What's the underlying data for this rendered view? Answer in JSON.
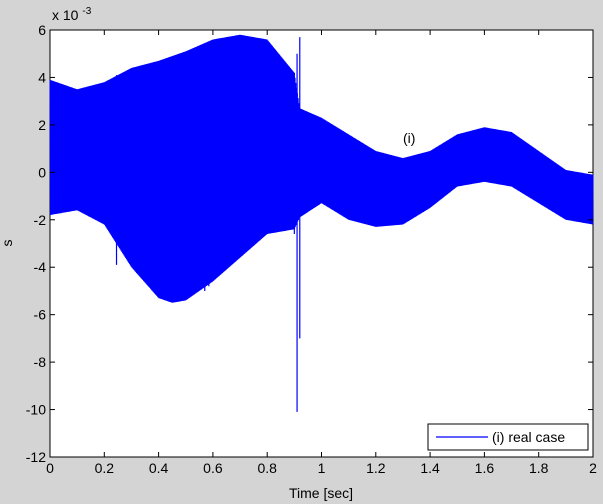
{
  "chart_data": {
    "type": "line",
    "title": "",
    "xlabel": "Time [sec]",
    "ylabel": "s",
    "xlim": [
      0,
      2
    ],
    "ylim": [
      -12,
      6
    ],
    "y_exponent_label": "x 10",
    "y_exponent_power": "-3",
    "grid": false,
    "x_ticks": [
      0,
      0.2,
      0.4,
      0.6,
      0.8,
      1,
      1.2,
      1.4,
      1.6,
      1.8,
      2
    ],
    "x_tick_labels": [
      "0",
      "0.2",
      "0.4",
      "0.6",
      "0.8",
      "1",
      "1.2",
      "1.4",
      "1.6",
      "1.8",
      "2"
    ],
    "y_ticks": [
      -12,
      -10,
      -8,
      -6,
      -4,
      -2,
      0,
      2,
      4,
      6
    ],
    "y_tick_labels": [
      "-12",
      "-10",
      "-8",
      "-6",
      "-4",
      "-2",
      "0",
      "2",
      "4",
      "6"
    ],
    "legend_position": "bottom-right",
    "annotation": {
      "text": "(i)",
      "x": 1.33,
      "y": 1.4
    },
    "series": [
      {
        "name": "(i) real case",
        "color": "#0000ff",
        "x": [
          0,
          0.1,
          0.2,
          0.3,
          0.4,
          0.45,
          0.5,
          0.6,
          0.7,
          0.8,
          0.9,
          0.92,
          1.0,
          1.1,
          1.2,
          1.3,
          1.4,
          1.5,
          1.6,
          1.7,
          1.8,
          1.9,
          2.0
        ],
        "upper": [
          3.9,
          3.5,
          3.8,
          4.4,
          4.7,
          4.9,
          5.1,
          5.6,
          5.8,
          5.6,
          4.2,
          2.7,
          2.3,
          1.6,
          0.9,
          0.6,
          0.9,
          1.6,
          1.9,
          1.7,
          0.9,
          0.1,
          -0.1
        ],
        "lower": [
          -1.8,
          -1.6,
          -2.2,
          -4.0,
          -5.3,
          -5.5,
          -5.4,
          -4.6,
          -3.6,
          -2.6,
          -2.4,
          -1.9,
          -1.3,
          -2.0,
          -2.3,
          -2.2,
          -1.5,
          -0.6,
          -0.4,
          -0.6,
          -1.3,
          -2.0,
          -2.2
        ],
        "spikes": [
          {
            "x": 0.245,
            "min": -3.9,
            "max": 4.1
          },
          {
            "x": 0.57,
            "min": -5.0,
            "max": 5.2
          },
          {
            "x": 0.585,
            "min": -4.8,
            "max": 5.4
          },
          {
            "x": 0.9,
            "min": -2.6,
            "max": 4.2
          },
          {
            "x": 0.91,
            "min": -10.1,
            "max": 5.0
          },
          {
            "x": 0.92,
            "min": -7.0,
            "max": 5.7
          }
        ]
      }
    ]
  }
}
